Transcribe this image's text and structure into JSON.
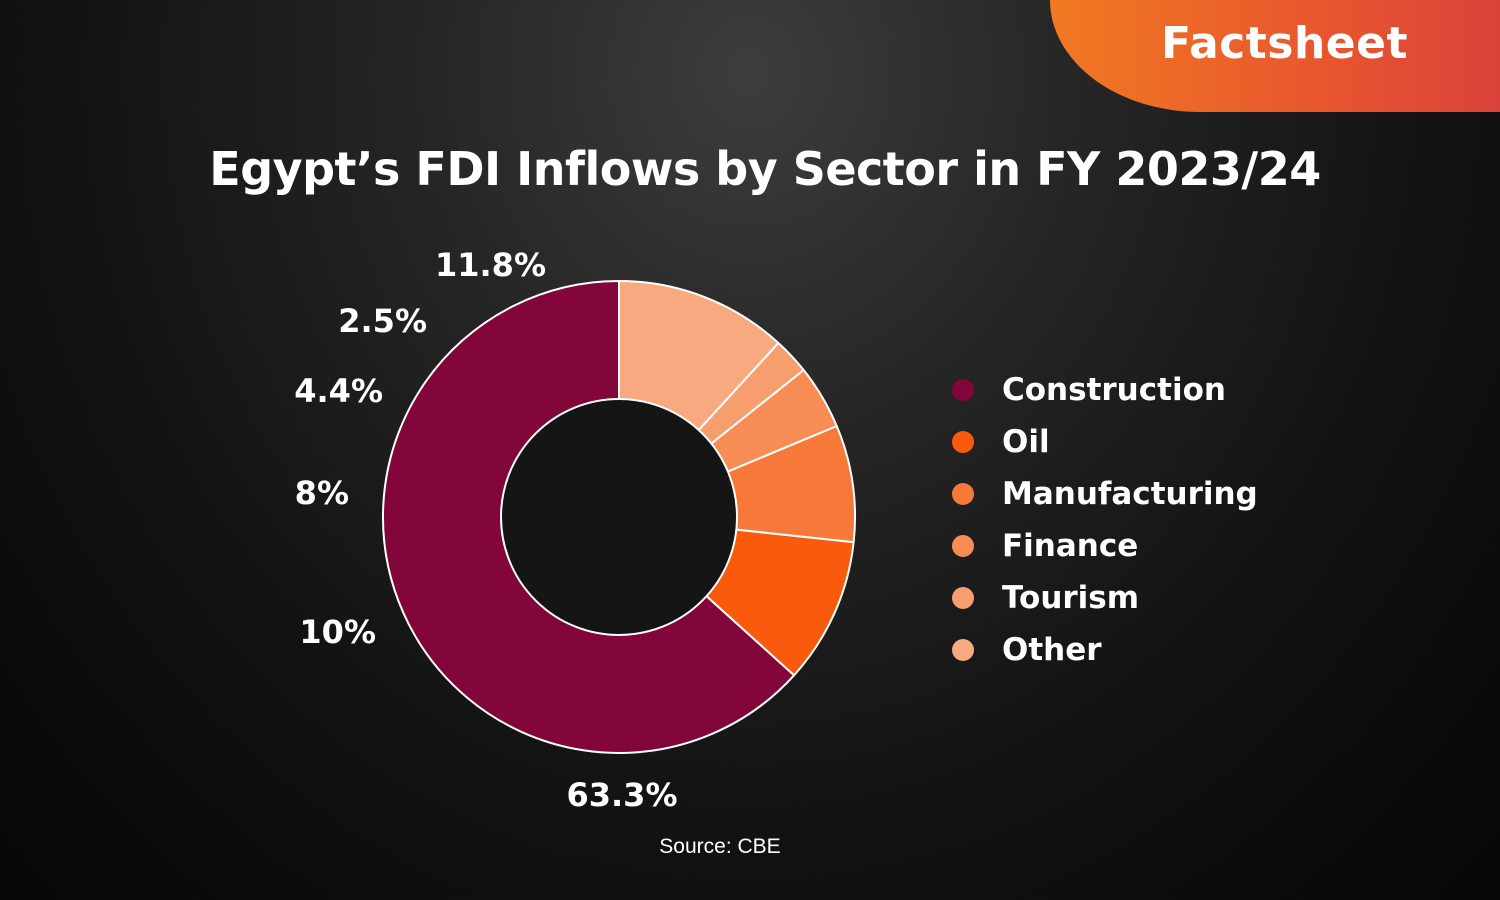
{
  "badge": {
    "label": "Factsheet"
  },
  "source": "Source: CBE",
  "colors": {
    "Construction": "#82063a",
    "Oil": "#fa5a0c",
    "Manufacturing": "#f7793a",
    "Finance": "#f78d55",
    "Tourism": "#f79e6e",
    "Other": "#f8a97f"
  },
  "chart_data": {
    "type": "pie",
    "style": "donut",
    "title": "Egypt’s FDI Inflows by Sector in FY 2023/24",
    "legend_position": "right",
    "categories": [
      "Construction",
      "Oil",
      "Manufacturing",
      "Finance",
      "Tourism",
      "Other"
    ],
    "values": [
      63.3,
      10,
      8,
      4.4,
      2.5,
      11.8
    ],
    "value_labels": [
      "63.3%",
      "10%",
      "8%",
      "4.4%",
      "2.5%",
      "11.8%"
    ]
  }
}
